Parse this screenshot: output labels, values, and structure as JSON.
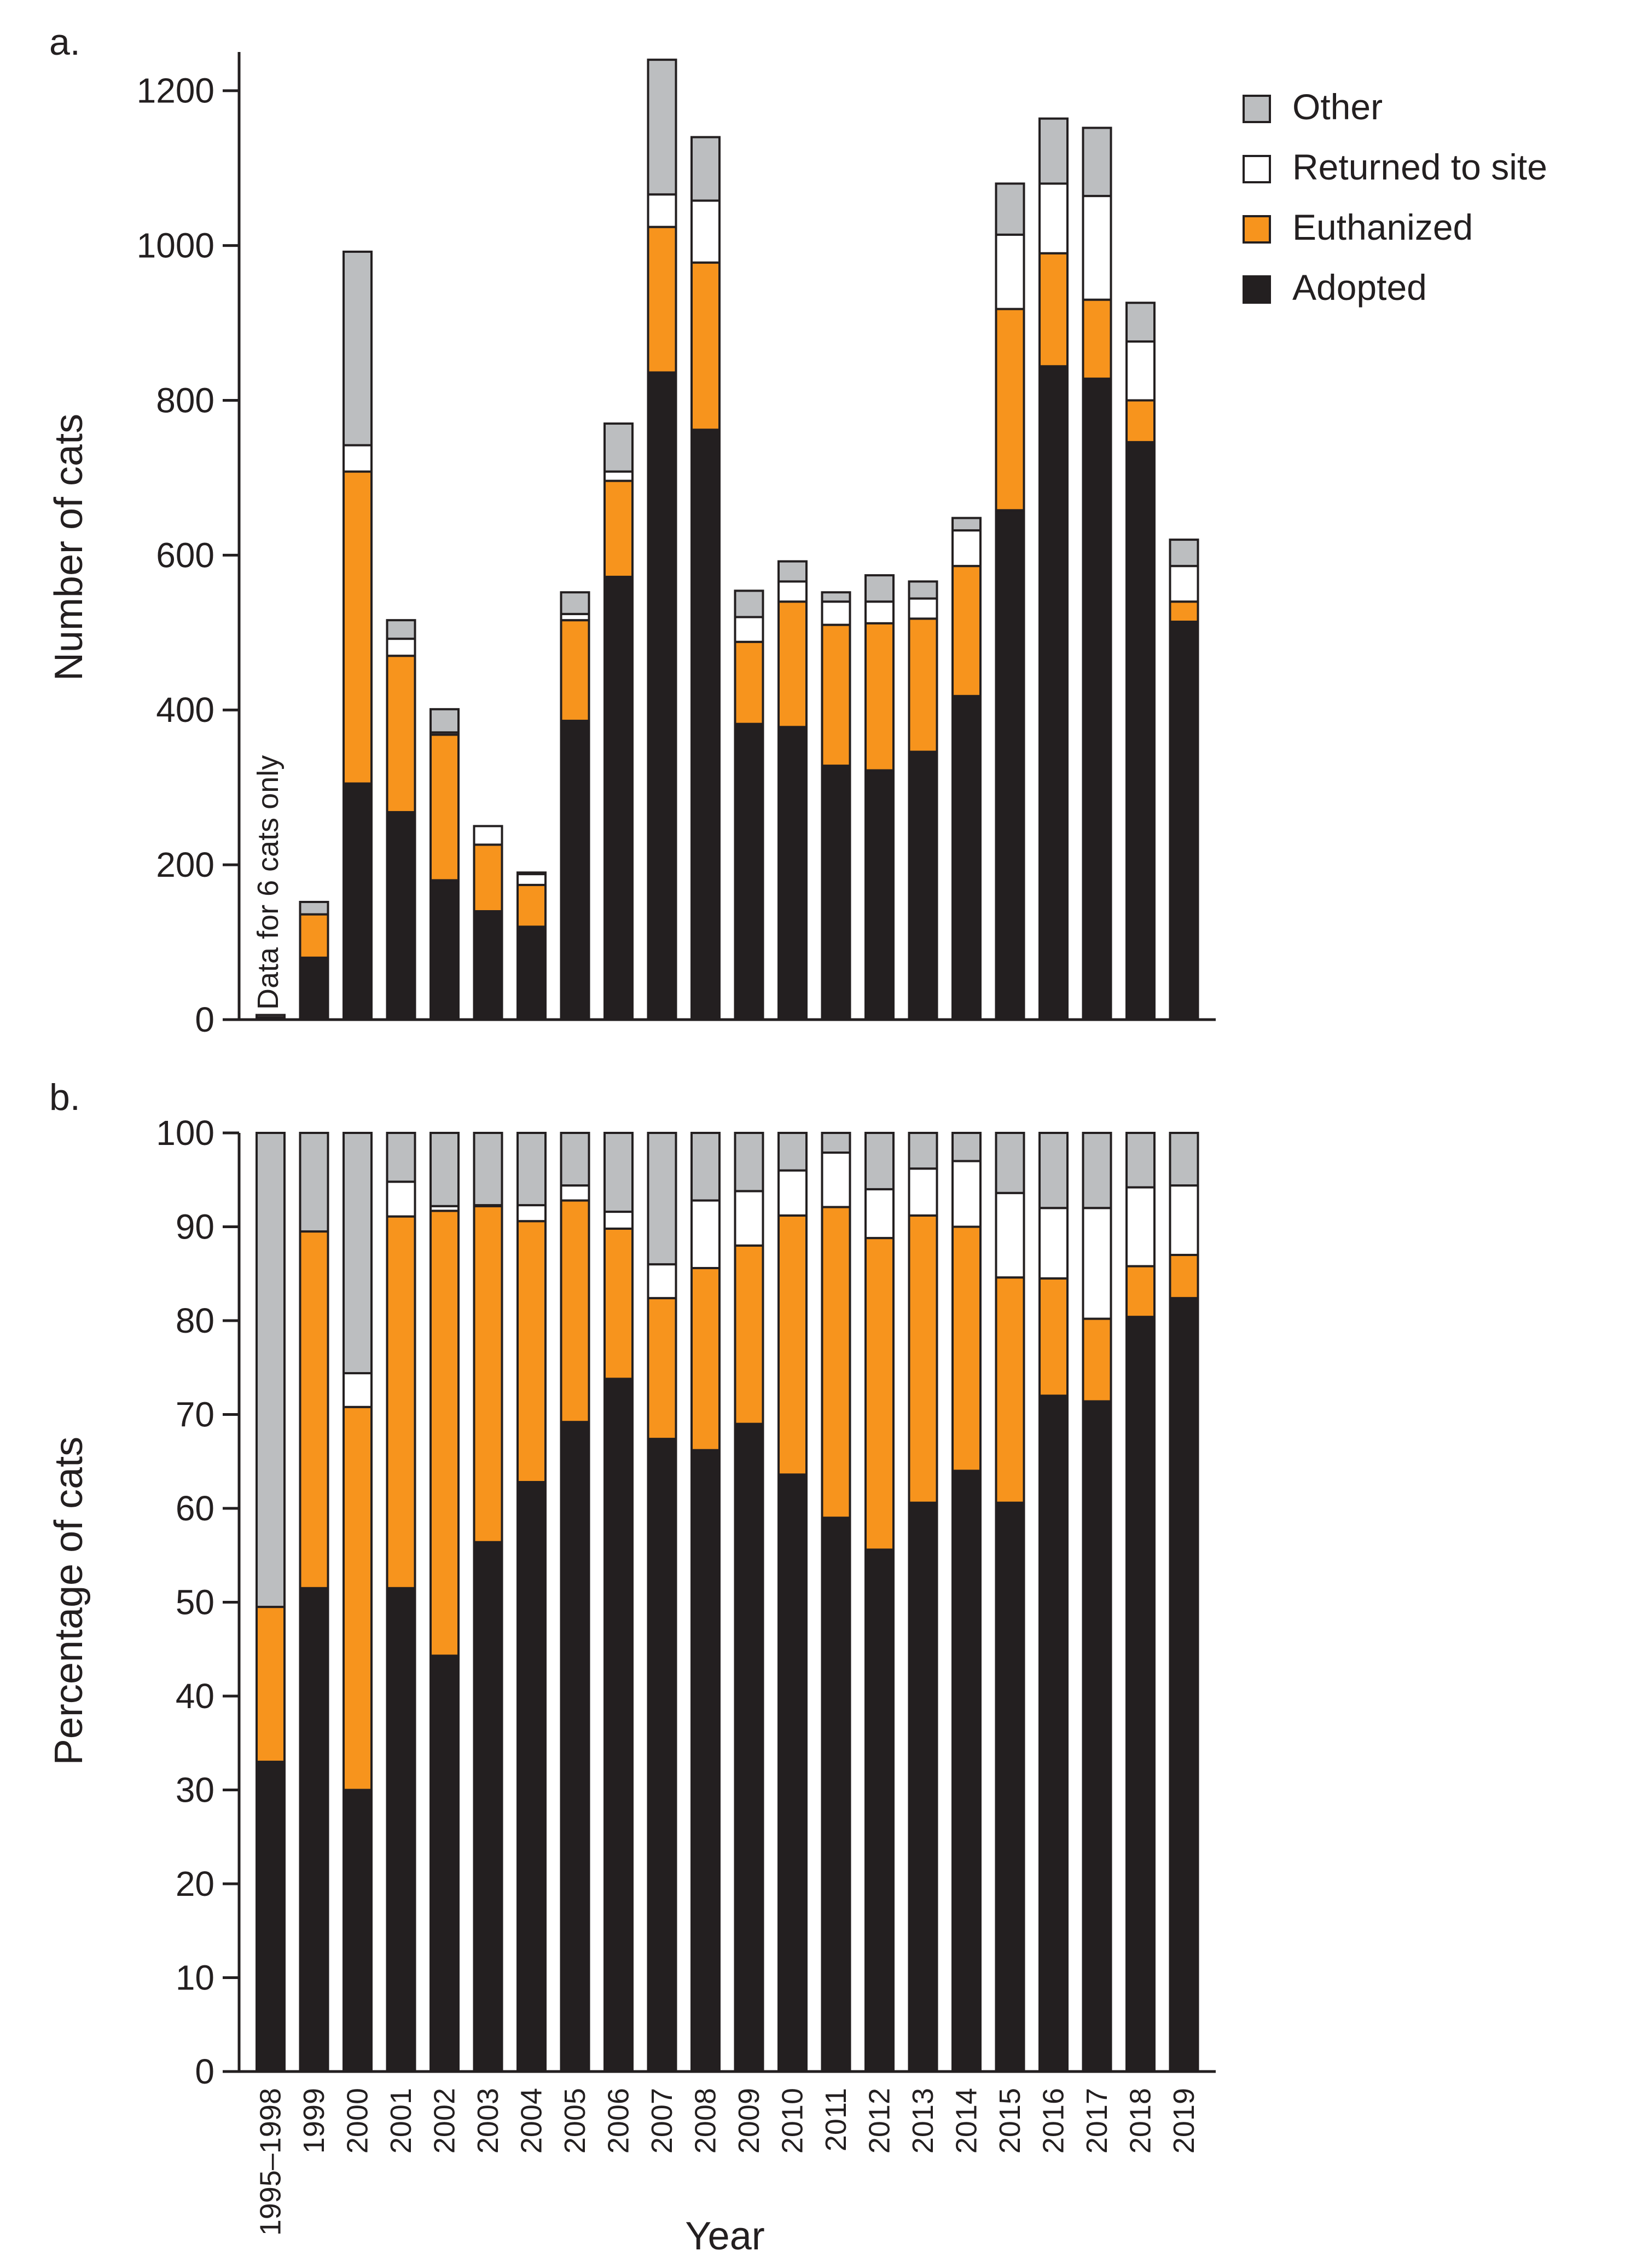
{
  "chart_data": [
    {
      "panel": "a.",
      "type": "bar",
      "stacked": true,
      "ylabel": "Number of cats",
      "ylim": [
        0,
        1250
      ],
      "yticks": [
        0,
        200,
        400,
        600,
        800,
        1000,
        1200
      ],
      "annotation": "Data for 6 cats only",
      "categories": [
        "1995–1998",
        "1999",
        "2000",
        "2001",
        "2002",
        "2003",
        "2004",
        "2005",
        "2006",
        "2007",
        "2008",
        "2009",
        "2010",
        "2011",
        "2012",
        "2013",
        "2014",
        "2015",
        "2016",
        "2017",
        "2018",
        "2019"
      ],
      "series": [
        {
          "name": "Adopted",
          "color": "#231f20",
          "values": [
            2,
            80,
            305,
            268,
            180,
            140,
            120,
            386,
            572,
            836,
            762,
            382,
            378,
            328,
            322,
            346,
            418,
            658,
            844,
            828,
            746,
            514
          ]
        },
        {
          "name": "Euthanized",
          "color": "#f7941d",
          "values": [
            1,
            56,
            403,
            202,
            188,
            86,
            54,
            130,
            124,
            188,
            216,
            106,
            162,
            182,
            190,
            172,
            168,
            260,
            146,
            102,
            54,
            26
          ]
        },
        {
          "name": "Returned to site",
          "color": "#ffffff",
          "values": [
            0,
            0,
            34,
            22,
            3,
            24,
            14,
            8,
            12,
            42,
            80,
            32,
            26,
            30,
            28,
            26,
            46,
            96,
            90,
            134,
            76,
            46
          ]
        },
        {
          "name": "Other",
          "color": "#bcbec0",
          "values": [
            3,
            16,
            250,
            24,
            30,
            0,
            2,
            28,
            62,
            174,
            82,
            34,
            26,
            12,
            34,
            22,
            16,
            66,
            84,
            88,
            50,
            34
          ]
        }
      ],
      "legend": {
        "position": "top-right",
        "order": [
          "Other",
          "Returned to site",
          "Euthanized",
          "Adopted"
        ]
      }
    },
    {
      "panel": "b.",
      "type": "bar",
      "stacked": true,
      "xlabel": "Year",
      "ylabel": "Percentage of cats",
      "ylim": [
        0,
        100
      ],
      "yticks": [
        0,
        10,
        20,
        30,
        40,
        50,
        60,
        70,
        80,
        90,
        100
      ],
      "categories": [
        "1995–1998",
        "1999",
        "2000",
        "2001",
        "2002",
        "2003",
        "2004",
        "2005",
        "2006",
        "2007",
        "2008",
        "2009",
        "2010",
        "2011",
        "2012",
        "2013",
        "2014",
        "2015",
        "2016",
        "2017",
        "2018",
        "2019"
      ],
      "series": [
        {
          "name": "Adopted",
          "color": "#231f20",
          "values": [
            33,
            51.5,
            30,
            51.5,
            44.3,
            56.4,
            62.8,
            69.2,
            73.8,
            67.4,
            66.2,
            69,
            63.6,
            59,
            55.6,
            60.6,
            64,
            60.6,
            72,
            71.4,
            80.4,
            82.4
          ]
        },
        {
          "name": "Euthanized",
          "color": "#f7941d",
          "values": [
            16.5,
            38,
            40.8,
            39.6,
            47.4,
            35.8,
            27.8,
            23.6,
            16,
            15,
            19.4,
            19,
            27.6,
            33.1,
            33.2,
            30.6,
            26,
            24,
            12.5,
            8.8,
            5.4,
            4.6
          ]
        },
        {
          "name": "Returned to site",
          "color": "#ffffff",
          "values": [
            0,
            0,
            3.6,
            3.7,
            0.5,
            0.1,
            1.7,
            1.6,
            1.8,
            3.6,
            7.2,
            5.8,
            4.8,
            5.8,
            5.2,
            5,
            7,
            9,
            7.5,
            11.8,
            8.4,
            7.4
          ]
        },
        {
          "name": "Other",
          "color": "#bcbec0",
          "values": [
            50.5,
            10.5,
            25.6,
            5.2,
            7.8,
            7.7,
            7.7,
            5.6,
            8.4,
            14,
            7.2,
            6.2,
            4,
            2.1,
            6,
            3.8,
            3,
            6.4,
            8,
            8,
            5.8,
            5.6
          ]
        }
      ]
    }
  ]
}
